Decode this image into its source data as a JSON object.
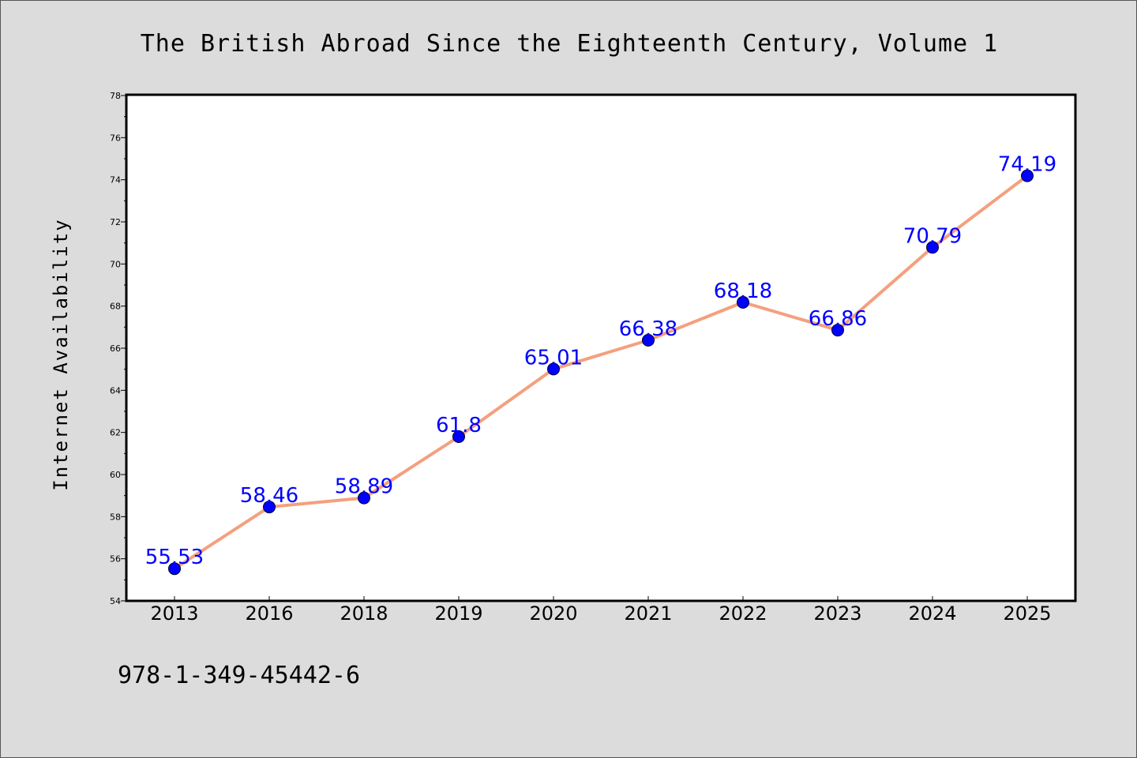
{
  "chart_data": {
    "type": "line",
    "title": "The British Abroad Since the Eighteenth Century, Volume 1",
    "xlabel": "",
    "ylabel": "Internet Availability",
    "categories": [
      "2013",
      "2016",
      "2018",
      "2019",
      "2020",
      "2021",
      "2022",
      "2023",
      "2024",
      "2025"
    ],
    "values": [
      55.53,
      58.46,
      58.89,
      61.8,
      65.01,
      66.38,
      68.18,
      66.86,
      70.79,
      74.19
    ],
    "data_labels": [
      "55.53",
      "58.46",
      "58.89",
      "61.8",
      "65.01",
      "66.38",
      "68.18",
      "66.86",
      "70.79",
      "74.19"
    ],
    "ylim": [
      54,
      78
    ],
    "yticks": [
      54,
      56,
      58,
      60,
      62,
      64,
      66,
      68,
      70,
      72,
      74,
      76,
      78
    ],
    "grid": false,
    "line_color": "#f4a07e",
    "marker_color": "#0000ff",
    "label_color": "#0000ff",
    "plot_background": "#ffffff",
    "page_background": "#dcdcdc"
  },
  "footer": {
    "isbn": "978-1-349-45442-6"
  }
}
